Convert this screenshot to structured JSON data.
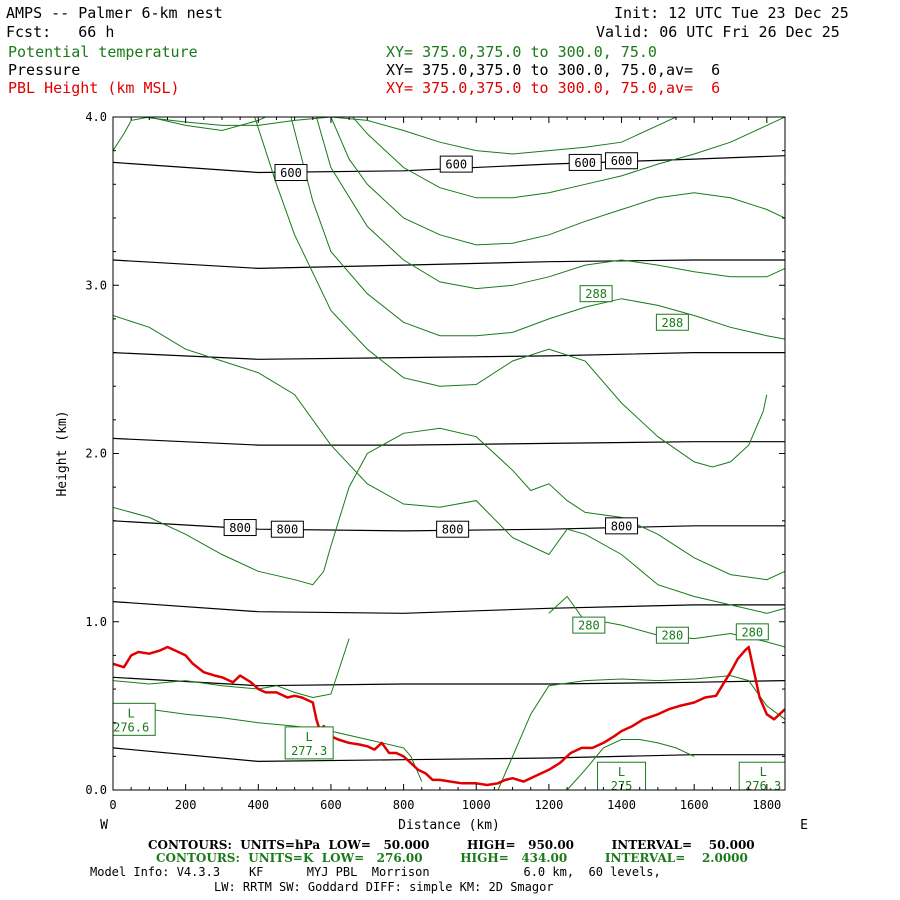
{
  "header": {
    "title": "AMPS -- Palmer 6-km nest",
    "fcst": "Fcst:   66 h",
    "init": "Init: 12 UTC Tue 23 Dec 25",
    "valid": "Valid: 06 UTC Fri 26 Dec 25",
    "fields": [
      {
        "name": "Potential temperature",
        "xy": "XY= 375.0,375.0 to 300.0, 75.0"
      },
      {
        "name": "Pressure",
        "xy": "XY= 375.0,375.0 to 300.0, 75.0,av=  6"
      },
      {
        "name": "PBL Height (km MSL)",
        "xy": "XY= 375.0,375.0 to 300.0, 75.0,av=  6"
      }
    ]
  },
  "colors": {
    "pressure": "#000000",
    "theta": "#1a7a1a",
    "pbl": "#e00000"
  },
  "chart_data": {
    "type": "line",
    "xlabel": "Distance (km)",
    "ylabel": "Height (km)",
    "xlim": [
      0,
      1850
    ],
    "ylim": [
      0,
      4
    ],
    "xticks": [
      0,
      200,
      400,
      600,
      800,
      1000,
      1200,
      1400,
      1600,
      1800
    ],
    "yticks": [
      0.0,
      1.0,
      2.0,
      3.0,
      4.0
    ],
    "ytick_labels": [
      "0.0",
      "1.0",
      "2.0",
      "3.0",
      "4.0"
    ],
    "west_label": "W",
    "east_label": "E",
    "pressure_contours": [
      {
        "x": [
          0,
          400,
          800,
          1200,
          1600,
          1850
        ],
        "y": [
          3.73,
          3.67,
          3.68,
          3.72,
          3.75,
          3.77
        ]
      },
      {
        "x": [
          0,
          400,
          800,
          1200,
          1600,
          1850
        ],
        "y": [
          3.15,
          3.1,
          3.12,
          3.14,
          3.15,
          3.15
        ]
      },
      {
        "x": [
          0,
          400,
          800,
          1200,
          1600,
          1850
        ],
        "y": [
          2.6,
          2.56,
          2.57,
          2.58,
          2.6,
          2.6
        ]
      },
      {
        "x": [
          0,
          400,
          800,
          1200,
          1600,
          1850
        ],
        "y": [
          2.09,
          2.05,
          2.05,
          2.06,
          2.07,
          2.07
        ]
      },
      {
        "x": [
          0,
          400,
          800,
          1200,
          1600,
          1850
        ],
        "y": [
          1.6,
          1.55,
          1.54,
          1.55,
          1.57,
          1.57
        ]
      },
      {
        "x": [
          0,
          400,
          800,
          1200,
          1600,
          1850
        ],
        "y": [
          1.12,
          1.06,
          1.05,
          1.08,
          1.1,
          1.1
        ]
      },
      {
        "x": [
          0,
          400,
          800,
          1200,
          1600,
          1850
        ],
        "y": [
          0.67,
          0.62,
          0.63,
          0.63,
          0.64,
          0.65
        ]
      },
      {
        "x": [
          0,
          400,
          800,
          1200,
          1600,
          1850
        ],
        "y": [
          0.25,
          0.17,
          0.18,
          0.19,
          0.21,
          0.21
        ]
      }
    ],
    "pressure_labels": [
      {
        "text": "600",
        "x": 490,
        "y": 3.67
      },
      {
        "text": "600",
        "x": 945,
        "y": 3.72
      },
      {
        "text": "600",
        "x": 1300,
        "y": 3.73
      },
      {
        "text": "600",
        "x": 1400,
        "y": 3.74
      },
      {
        "text": "800",
        "x": 350,
        "y": 1.56
      },
      {
        "text": "800",
        "x": 480,
        "y": 1.55
      },
      {
        "text": "800",
        "x": 935,
        "y": 1.55
      },
      {
        "text": "800",
        "x": 1400,
        "y": 1.57
      }
    ],
    "theta_contours": [
      {
        "x": [
          30,
          80,
          200,
          300,
          400,
          500,
          600,
          700,
          800,
          900,
          1000,
          1100,
          1200,
          1300,
          1400,
          1500,
          1550
        ],
        "y": [
          4.0,
          4.0,
          3.97,
          3.95,
          3.95,
          3.98,
          4.0,
          3.98,
          3.92,
          3.85,
          3.8,
          3.78,
          3.8,
          3.82,
          3.85,
          3.95,
          4.0
        ]
      },
      {
        "x": [
          0,
          30,
          50,
          100,
          200,
          300,
          400,
          420
        ],
        "y": [
          3.8,
          3.9,
          3.98,
          4.0,
          3.95,
          3.92,
          3.98,
          4.0
        ]
      },
      {
        "x": [
          390,
          450,
          500,
          600,
          700,
          800,
          900,
          1000,
          1100,
          1200,
          1300,
          1400,
          1500,
          1600,
          1650,
          1700,
          1750,
          1790,
          1800
        ],
        "y": [
          4.0,
          3.6,
          3.3,
          2.85,
          2.62,
          2.45,
          2.4,
          2.41,
          2.55,
          2.62,
          2.55,
          2.3,
          2.1,
          1.95,
          1.92,
          1.95,
          2.05,
          2.25,
          2.35
        ]
      },
      {
        "x": [
          490,
          550,
          600,
          700,
          800,
          900,
          1000,
          1100,
          1200,
          1300,
          1400,
          1500,
          1600,
          1700,
          1800,
          1850
        ],
        "y": [
          4.0,
          3.5,
          3.2,
          2.95,
          2.78,
          2.7,
          2.7,
          2.72,
          2.8,
          2.87,
          2.92,
          2.88,
          2.82,
          2.75,
          2.7,
          2.68
        ]
      },
      {
        "x": [
          560,
          600,
          700,
          800,
          900,
          1000,
          1100,
          1200,
          1300,
          1400,
          1500,
          1600,
          1700,
          1800,
          1850
        ],
        "y": [
          4.0,
          3.7,
          3.35,
          3.15,
          3.02,
          2.98,
          3.0,
          3.05,
          3.12,
          3.15,
          3.12,
          3.08,
          3.05,
          3.05,
          3.1
        ]
      },
      {
        "x": [
          600,
          650,
          700,
          800,
          900,
          1000,
          1100,
          1200,
          1300,
          1400,
          1500,
          1600,
          1700,
          1800,
          1850
        ],
        "y": [
          4.0,
          3.75,
          3.6,
          3.4,
          3.3,
          3.24,
          3.25,
          3.3,
          3.38,
          3.45,
          3.52,
          3.55,
          3.52,
          3.45,
          3.4
        ]
      },
      {
        "x": [
          660,
          700,
          800,
          900,
          1000,
          1100,
          1200,
          1300,
          1400,
          1500,
          1600,
          1700,
          1750,
          1800,
          1850
        ],
        "y": [
          4.0,
          3.9,
          3.7,
          3.58,
          3.52,
          3.52,
          3.55,
          3.6,
          3.65,
          3.72,
          3.78,
          3.85,
          3.9,
          3.95,
          4.0
        ]
      },
      {
        "x": [
          0,
          100,
          200,
          300,
          400,
          500,
          550,
          580,
          600,
          650,
          700,
          800,
          900,
          1000,
          1100,
          1150,
          1200,
          1250,
          1300,
          1400,
          1500,
          1600,
          1700,
          1800,
          1850
        ],
        "y": [
          1.68,
          1.62,
          1.52,
          1.4,
          1.3,
          1.25,
          1.22,
          1.3,
          1.45,
          1.8,
          2.0,
          2.12,
          2.15,
          2.1,
          1.9,
          1.78,
          1.82,
          1.72,
          1.65,
          1.62,
          1.52,
          1.38,
          1.28,
          1.25,
          1.3
        ]
      },
      {
        "x": [
          0,
          100,
          200,
          300,
          400,
          500,
          600,
          700,
          800,
          900,
          1000,
          1100,
          1200,
          1250,
          1300,
          1400,
          1500,
          1600,
          1700,
          1800,
          1850
        ],
        "y": [
          2.82,
          2.75,
          2.62,
          2.55,
          2.48,
          2.35,
          2.05,
          1.82,
          1.7,
          1.68,
          1.72,
          1.5,
          1.4,
          1.55,
          1.52,
          1.4,
          1.22,
          1.15,
          1.1,
          1.05,
          1.08
        ]
      },
      {
        "x": [
          0,
          100,
          200,
          300,
          400,
          450,
          500,
          550,
          600,
          650
        ],
        "y": [
          0.65,
          0.63,
          0.65,
          0.62,
          0.6,
          0.62,
          0.58,
          0.55,
          0.57,
          0.9
        ]
      },
      {
        "x": [
          50,
          100,
          200,
          300,
          400,
          500,
          600,
          700,
          800,
          820,
          850
        ],
        "y": [
          0.45,
          0.48,
          0.45,
          0.43,
          0.4,
          0.38,
          0.35,
          0.3,
          0.25,
          0.2,
          0.05
        ]
      },
      {
        "x": [
          1060,
          1100,
          1150,
          1200,
          1300,
          1400,
          1500,
          1600,
          1700,
          1750,
          1800,
          1850
        ],
        "y": [
          0.0,
          0.2,
          0.45,
          0.62,
          0.65,
          0.66,
          0.65,
          0.66,
          0.68,
          0.65,
          0.5,
          0.42
        ]
      },
      {
        "x": [
          1250,
          1300,
          1350,
          1400,
          1450,
          1500,
          1550,
          1600
        ],
        "y": [
          0.0,
          0.12,
          0.25,
          0.3,
          0.3,
          0.28,
          0.25,
          0.2
        ]
      },
      {
        "x": [
          1200,
          1250,
          1300,
          1350,
          1400,
          1500,
          1600,
          1700,
          1800,
          1850
        ],
        "y": [
          1.05,
          1.15,
          1.0,
          1.0,
          0.98,
          0.92,
          0.9,
          0.93,
          0.88,
          0.85
        ]
      }
    ],
    "theta_labels": [
      {
        "text": "288",
        "x": 1330,
        "y": 2.95
      },
      {
        "text": "288",
        "x": 1540,
        "y": 2.78
      },
      {
        "text": "280",
        "x": 1310,
        "y": 0.98
      },
      {
        "text": "280",
        "x": 1540,
        "y": 0.92
      },
      {
        "text": "280",
        "x": 1760,
        "y": 0.94
      }
    ],
    "theta_lows": [
      {
        "letter": "L",
        "value": "276.6",
        "x": 50,
        "y": 0.42
      },
      {
        "letter": "L",
        "value": "277.3",
        "x": 540,
        "y": 0.28
      },
      {
        "letter": "L",
        "value": "275",
        "x": 1400,
        "y": 0.07
      },
      {
        "letter": "L",
        "value": "276.3",
        "x": 1790,
        "y": 0.07
      }
    ],
    "pbl_height": {
      "x": [
        0,
        30,
        50,
        70,
        100,
        130,
        150,
        180,
        200,
        220,
        250,
        280,
        300,
        330,
        350,
        380,
        400,
        420,
        450,
        480,
        500,
        520,
        550,
        560,
        570,
        580,
        600,
        620,
        650,
        680,
        700,
        720,
        740,
        760,
        780,
        800,
        820,
        840,
        860,
        880,
        900,
        930,
        960,
        1000,
        1030,
        1060,
        1080,
        1100,
        1130,
        1160,
        1200,
        1230,
        1260,
        1290,
        1320,
        1350,
        1380,
        1400,
        1430,
        1460,
        1500,
        1530,
        1560,
        1600,
        1630,
        1660,
        1700,
        1720,
        1740,
        1750,
        1760,
        1780,
        1800,
        1820,
        1850
      ],
      "y": [
        0.75,
        0.73,
        0.8,
        0.82,
        0.81,
        0.83,
        0.85,
        0.82,
        0.8,
        0.75,
        0.7,
        0.68,
        0.67,
        0.64,
        0.68,
        0.64,
        0.6,
        0.58,
        0.58,
        0.55,
        0.56,
        0.55,
        0.52,
        0.42,
        0.35,
        0.38,
        0.32,
        0.3,
        0.28,
        0.27,
        0.26,
        0.24,
        0.28,
        0.22,
        0.22,
        0.2,
        0.16,
        0.12,
        0.1,
        0.06,
        0.06,
        0.05,
        0.04,
        0.04,
        0.03,
        0.04,
        0.06,
        0.07,
        0.05,
        0.08,
        0.12,
        0.16,
        0.22,
        0.25,
        0.25,
        0.28,
        0.32,
        0.35,
        0.38,
        0.42,
        0.45,
        0.48,
        0.5,
        0.52,
        0.55,
        0.56,
        0.7,
        0.78,
        0.83,
        0.85,
        0.75,
        0.55,
        0.45,
        0.42,
        0.48
      ]
    }
  },
  "footer": {
    "line1": "CONTOURS:  UNITS=hPa  LOW=   50.000         HIGH=   950.00         INTERVAL=    50.000",
    "line2": "CONTOURS:  UNITS=K  LOW=   276.00         HIGH=   434.00         INTERVAL=    2.0000",
    "line3": "Model Info: V4.3.3    KF      MYJ PBL  Morrison             6.0 km,  60 levels,",
    "line4": "LW: RRTM SW: Goddard DIFF: simple KM: 2D Smagor"
  }
}
